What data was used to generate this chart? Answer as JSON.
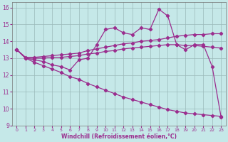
{
  "xlabel": "Windchill (Refroidissement éolien,°C)",
  "x": [
    0,
    1,
    2,
    3,
    4,
    5,
    6,
    7,
    8,
    9,
    10,
    11,
    12,
    13,
    14,
    15,
    16,
    17,
    18,
    19,
    20,
    21,
    22,
    23
  ],
  "y_main": [
    13.5,
    13.0,
    12.9,
    12.8,
    12.6,
    12.5,
    12.3,
    12.9,
    13.0,
    13.8,
    14.7,
    14.8,
    14.5,
    14.4,
    14.8,
    14.7,
    15.9,
    15.5,
    13.8,
    13.5,
    13.8,
    13.8,
    12.5,
    9.5
  ],
  "y_upper": [
    13.5,
    13.05,
    13.05,
    13.1,
    13.15,
    13.2,
    13.25,
    13.3,
    13.45,
    13.55,
    13.65,
    13.75,
    13.85,
    13.9,
    14.0,
    14.05,
    14.1,
    14.2,
    14.3,
    14.35,
    14.4,
    14.4,
    14.45,
    14.45
  ],
  "y_mid": [
    13.5,
    13.0,
    13.0,
    13.0,
    13.05,
    13.05,
    13.1,
    13.15,
    13.25,
    13.3,
    13.4,
    13.45,
    13.55,
    13.6,
    13.65,
    13.7,
    13.75,
    13.8,
    13.8,
    13.75,
    13.75,
    13.7,
    13.65,
    13.6
  ],
  "y_lower": [
    13.5,
    13.0,
    12.75,
    12.55,
    12.35,
    12.15,
    11.9,
    11.75,
    11.5,
    11.3,
    11.1,
    10.9,
    10.7,
    10.55,
    10.4,
    10.25,
    10.1,
    9.95,
    9.85,
    9.75,
    9.7,
    9.65,
    9.6,
    9.55
  ],
  "bg_color": "#c5e8e8",
  "line_color": "#9b2d8e",
  "grid_color": "#9ababa",
  "ylim_min": 9,
  "ylim_max": 16.3,
  "yticks": [
    9,
    10,
    11,
    12,
    13,
    14,
    15,
    16
  ],
  "xticks": [
    0,
    1,
    2,
    3,
    4,
    5,
    6,
    7,
    8,
    9,
    10,
    11,
    12,
    13,
    14,
    15,
    16,
    17,
    18,
    19,
    20,
    21,
    22,
    23
  ]
}
